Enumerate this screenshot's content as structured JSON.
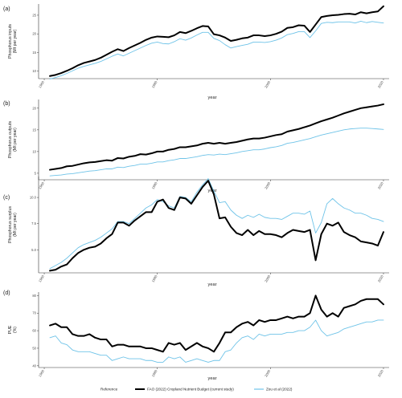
{
  "colors": {
    "fao": "#000000",
    "zou": "#6ec3e8",
    "axis": "#333333"
  },
  "legend": {
    "title": "Reference",
    "items": [
      {
        "label": "FAO (2022) Cropland Nutrient Budget (current study)",
        "color": "#000000"
      },
      {
        "label": "Zou et al (2022)",
        "color": "#6ec3e8"
      }
    ],
    "placement": "bottom"
  },
  "chart_data": [
    {
      "type": "line",
      "panel_label": "(a)",
      "xlabel": "year",
      "ylabel": "Phosphorus inputs\n(Mt per year)",
      "xlim": [
        1959,
        2021
      ],
      "ylim": [
        8,
        28
      ],
      "xticks": [
        1960,
        1980,
        2000,
        2020
      ],
      "yticks": [
        10,
        15,
        20,
        25
      ],
      "x": [
        1961,
        1962,
        1963,
        1964,
        1965,
        1966,
        1967,
        1968,
        1969,
        1970,
        1971,
        1972,
        1973,
        1974,
        1975,
        1976,
        1977,
        1978,
        1979,
        1980,
        1981,
        1982,
        1983,
        1984,
        1985,
        1986,
        1987,
        1988,
        1989,
        1990,
        1991,
        1992,
        1993,
        1994,
        1995,
        1996,
        1997,
        1998,
        1999,
        2000,
        2001,
        2002,
        2003,
        2004,
        2005,
        2006,
        2007,
        2008,
        2009,
        2010,
        2011,
        2012,
        2013,
        2014,
        2015,
        2016,
        2017,
        2018,
        2019,
        2020
      ],
      "series": [
        {
          "name": "FAO (2022) Cropland Nutrient Budget (current study)",
          "color": "#000000",
          "width": 2.0,
          "values": [
            8.7,
            9.0,
            9.5,
            10.1,
            10.8,
            11.6,
            12.2,
            12.6,
            13.0,
            13.6,
            14.4,
            15.2,
            15.9,
            15.4,
            16.2,
            16.9,
            17.6,
            18.4,
            19.0,
            19.3,
            19.2,
            19.1,
            19.6,
            20.5,
            20.2,
            20.8,
            21.5,
            22.1,
            22.0,
            19.9,
            19.6,
            19.0,
            18.1,
            18.4,
            18.8,
            19.0,
            19.6,
            19.6,
            19.4,
            19.6,
            20.0,
            20.6,
            21.6,
            21.8,
            22.3,
            22.2,
            20.5,
            22.5,
            24.5,
            24.8,
            25.0,
            25.1,
            25.3,
            25.4,
            25.2,
            25.8,
            25.5,
            25.8,
            26.0,
            27.4
          ]
        },
        {
          "name": "Zou et al (2022)",
          "color": "#6ec3e8",
          "width": 0.9,
          "values": [
            7.9,
            8.3,
            8.8,
            9.4,
            10.1,
            10.8,
            11.3,
            11.7,
            12.1,
            12.6,
            13.3,
            14.0,
            14.6,
            14.1,
            14.8,
            15.5,
            16.2,
            16.9,
            17.5,
            17.8,
            17.4,
            17.3,
            17.9,
            18.7,
            18.3,
            18.9,
            19.7,
            20.4,
            20.4,
            18.8,
            18.2,
            17.1,
            16.2,
            16.6,
            16.9,
            17.2,
            17.8,
            17.8,
            17.7,
            17.9,
            18.3,
            18.9,
            19.8,
            20.1,
            20.6,
            20.6,
            19.0,
            20.8,
            22.8,
            23.1,
            23.0,
            23.2,
            23.2,
            23.2,
            22.9,
            23.4,
            23.0,
            23.3,
            23.1,
            22.9
          ]
        }
      ]
    },
    {
      "type": "line",
      "panel_label": "(b)",
      "xlabel": "year",
      "ylabel": "Phosphorus outputs\n(Mt per year)",
      "xlim": [
        1959,
        2021
      ],
      "ylim": [
        3.5,
        22
      ],
      "xticks": [
        1960,
        1980,
        2000,
        2020
      ],
      "yticks": [
        5,
        10,
        15,
        20
      ],
      "x": [
        1961,
        1962,
        1963,
        1964,
        1965,
        1966,
        1967,
        1968,
        1969,
        1970,
        1971,
        1972,
        1973,
        1974,
        1975,
        1976,
        1977,
        1978,
        1979,
        1980,
        1981,
        1982,
        1983,
        1984,
        1985,
        1986,
        1987,
        1988,
        1989,
        1990,
        1991,
        1992,
        1993,
        1994,
        1995,
        1996,
        1997,
        1998,
        1999,
        2000,
        2001,
        2002,
        2003,
        2004,
        2005,
        2006,
        2007,
        2008,
        2009,
        2010,
        2011,
        2012,
        2013,
        2014,
        2015,
        2016,
        2017,
        2018,
        2019,
        2020
      ],
      "series": [
        {
          "name": "FAO (2022) Cropland Nutrient Budget (current study)",
          "color": "#000000",
          "width": 2.0,
          "values": [
            5.8,
            6.0,
            6.2,
            6.6,
            6.7,
            7.0,
            7.3,
            7.5,
            7.6,
            7.8,
            8.0,
            7.9,
            8.5,
            8.4,
            8.8,
            9.0,
            9.4,
            9.3,
            9.6,
            10.0,
            10.0,
            10.4,
            10.6,
            11.0,
            11.0,
            11.2,
            11.4,
            11.8,
            12.0,
            11.8,
            12.0,
            11.8,
            12.0,
            12.2,
            12.5,
            12.8,
            13.0,
            13.0,
            13.2,
            13.5,
            13.8,
            14.0,
            14.6,
            14.9,
            15.2,
            15.6,
            16.0,
            16.5,
            17.0,
            17.4,
            17.8,
            18.3,
            18.8,
            19.2,
            19.6,
            20.0,
            20.2,
            20.4,
            20.6,
            20.9
          ]
        },
        {
          "name": "Zou et al (2022)",
          "color": "#6ec3e8",
          "width": 0.9,
          "values": [
            4.4,
            4.5,
            4.6,
            4.8,
            4.9,
            5.1,
            5.3,
            5.5,
            5.6,
            5.8,
            6.0,
            6.0,
            6.4,
            6.3,
            6.6,
            6.8,
            7.1,
            7.1,
            7.3,
            7.6,
            7.6,
            7.9,
            8.1,
            8.4,
            8.4,
            8.6,
            8.8,
            9.1,
            9.3,
            9.2,
            9.4,
            9.3,
            9.5,
            9.7,
            10.0,
            10.2,
            10.4,
            10.4,
            10.6,
            10.9,
            11.1,
            11.4,
            11.9,
            12.1,
            12.4,
            12.7,
            13.0,
            13.4,
            13.8,
            14.1,
            14.4,
            14.7,
            15.0,
            15.2,
            15.3,
            15.4,
            15.4,
            15.3,
            15.2,
            15.1
          ]
        }
      ]
    },
    {
      "type": "line",
      "panel_label": "(c)",
      "xlabel": "year",
      "ylabel": "Phosphorus surplus\n(Mt per year)",
      "xlim": [
        1959,
        2021
      ],
      "ylim": [
        2.8,
        12
      ],
      "xticks": [
        1960,
        1980,
        2000,
        2020
      ],
      "yticks": [
        5.0,
        7.5,
        10.0
      ],
      "x": [
        1961,
        1962,
        1963,
        1964,
        1965,
        1966,
        1967,
        1968,
        1969,
        1970,
        1971,
        1972,
        1973,
        1974,
        1975,
        1976,
        1977,
        1978,
        1979,
        1980,
        1981,
        1982,
        1983,
        1984,
        1985,
        1986,
        1987,
        1988,
        1989,
        1990,
        1991,
        1992,
        1993,
        1994,
        1995,
        1996,
        1997,
        1998,
        1999,
        2000,
        2001,
        2002,
        2003,
        2004,
        2005,
        2006,
        2007,
        2008,
        2009,
        2010,
        2011,
        2012,
        2013,
        2014,
        2015,
        2016,
        2017,
        2018,
        2019,
        2020
      ],
      "series": [
        {
          "name": "FAO (2022) Cropland Nutrient Budget (current study)",
          "color": "#000000",
          "width": 2.0,
          "values": [
            3.0,
            3.1,
            3.4,
            3.6,
            4.2,
            4.7,
            5.0,
            5.2,
            5.3,
            5.6,
            6.1,
            6.5,
            7.6,
            7.6,
            7.3,
            7.8,
            8.2,
            8.6,
            8.6,
            9.6,
            9.8,
            9.0,
            8.8,
            10.0,
            9.9,
            9.4,
            10.2,
            11.0,
            11.6,
            10.3,
            8.0,
            8.1,
            7.2,
            6.6,
            6.4,
            6.9,
            6.4,
            6.8,
            6.5,
            6.5,
            6.4,
            6.2,
            6.6,
            6.9,
            6.8,
            6.7,
            6.9,
            4.0,
            6.5,
            7.5,
            7.3,
            7.6,
            6.7,
            6.4,
            6.2,
            5.8,
            5.7,
            5.6,
            5.4,
            6.7
          ]
        },
        {
          "name": "Zou et al (2022)",
          "color": "#6ec3e8",
          "width": 0.9,
          "values": [
            3.2,
            3.5,
            3.8,
            4.2,
            4.7,
            5.2,
            5.5,
            5.7,
            5.9,
            6.2,
            6.6,
            7.0,
            7.7,
            7.7,
            7.5,
            8.0,
            8.5,
            9.0,
            9.3,
            9.8,
            9.6,
            9.2,
            9.0,
            10.1,
            10.0,
            9.6,
            10.5,
            11.2,
            11.8,
            10.6,
            9.5,
            9.6,
            8.8,
            8.3,
            8.0,
            8.3,
            8.1,
            8.4,
            8.1,
            8.0,
            8.0,
            7.9,
            8.2,
            8.5,
            8.5,
            8.4,
            8.7,
            6.6,
            7.6,
            9.4,
            9.9,
            9.4,
            9.0,
            8.8,
            8.5,
            8.5,
            8.3,
            8.0,
            7.9,
            7.7
          ]
        }
      ]
    },
    {
      "type": "line",
      "panel_label": "(d)",
      "xlabel": "year",
      "ylabel": "PUE\n(%)",
      "xlim": [
        1959,
        2021
      ],
      "ylim": [
        39,
        82
      ],
      "xticks": [
        1960,
        1980,
        2000,
        2020
      ],
      "yticks": [
        40,
        50,
        60,
        70,
        80
      ],
      "x": [
        1961,
        1962,
        1963,
        1964,
        1965,
        1966,
        1967,
        1968,
        1969,
        1970,
        1971,
        1972,
        1973,
        1974,
        1975,
        1976,
        1977,
        1978,
        1979,
        1980,
        1981,
        1982,
        1983,
        1984,
        1985,
        1986,
        1987,
        1988,
        1989,
        1990,
        1991,
        1992,
        1993,
        1994,
        1995,
        1996,
        1997,
        1998,
        1999,
        2000,
        2001,
        2002,
        2003,
        2004,
        2005,
        2006,
        2007,
        2008,
        2009,
        2010,
        2011,
        2012,
        2013,
        2014,
        2015,
        2016,
        2017,
        2018,
        2019,
        2020
      ],
      "series": [
        {
          "name": "FAO (2022) Cropland Nutrient Budget (current study)",
          "color": "#000000",
          "width": 2.0,
          "values": [
            63,
            64,
            62,
            62,
            58,
            57,
            57,
            58,
            56,
            55,
            55,
            51,
            52,
            52,
            51,
            51,
            51,
            50,
            50,
            49,
            48,
            53,
            52,
            53,
            49,
            51,
            53,
            51,
            50,
            48,
            53,
            59,
            59,
            62,
            64,
            65,
            63,
            66,
            65,
            66,
            66,
            67,
            68,
            67,
            68,
            68,
            70,
            80,
            72,
            68,
            70,
            68,
            73,
            74,
            75,
            77,
            78,
            78,
            78,
            75
          ]
        },
        {
          "name": "Zou et al (2022)",
          "color": "#6ec3e8",
          "width": 0.9,
          "values": [
            56,
            57,
            53,
            52,
            49,
            48,
            48,
            48,
            47,
            46,
            46,
            43,
            44,
            45,
            44,
            44,
            44,
            43,
            43,
            42,
            42,
            45,
            44,
            45,
            42,
            43,
            44,
            43,
            42,
            43,
            43,
            48,
            49,
            53,
            56,
            57,
            55,
            58,
            57,
            58,
            58,
            58,
            59,
            59,
            60,
            60,
            62,
            66,
            60,
            57,
            58,
            59,
            61,
            62,
            63,
            64,
            65,
            65,
            66,
            66
          ]
        }
      ]
    }
  ]
}
